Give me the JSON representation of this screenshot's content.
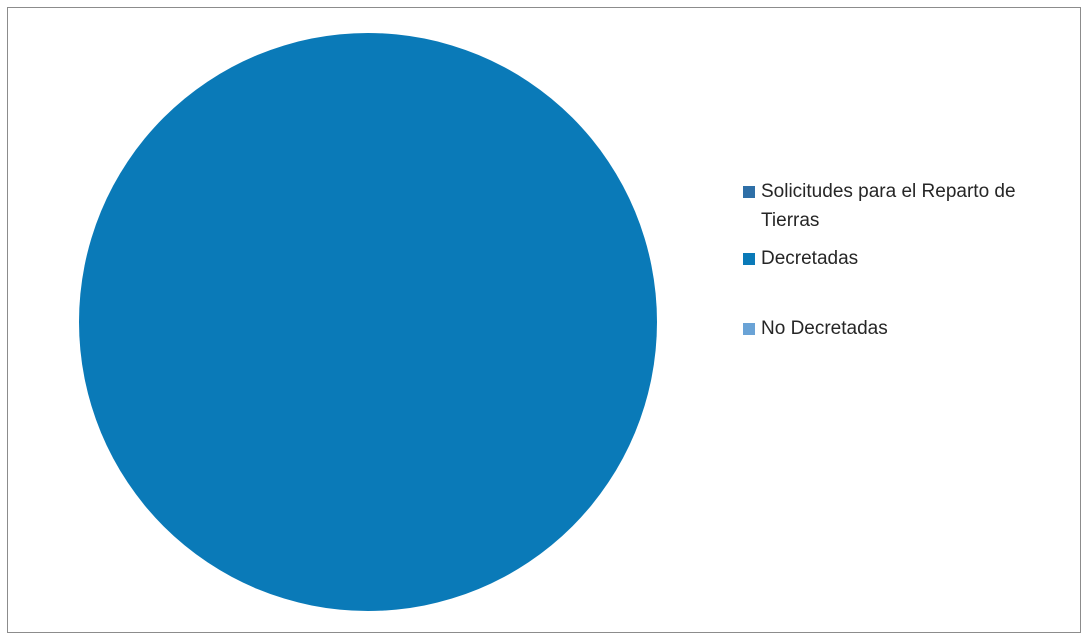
{
  "chart_data": {
    "type": "pie",
    "title": "",
    "slices": [
      {
        "label": "Solicitudes para el Reparto de Tierras",
        "value": 0,
        "color": "#2e6fa7"
      },
      {
        "label": "Decretadas",
        "value": 100,
        "color": "#0a7ab8"
      },
      {
        "label": "No Decretadas",
        "value": 0,
        "color": "#6aa3d6"
      }
    ],
    "legend_position": "right"
  },
  "legend": {
    "items": [
      {
        "label": "Solicitudes para el Reparto de Tierras",
        "color": "#2e6fa7"
      },
      {
        "label": "Decretadas",
        "color": "#0a7ab8"
      },
      {
        "label": "No Decretadas",
        "color": "#6aa3d6"
      }
    ]
  }
}
